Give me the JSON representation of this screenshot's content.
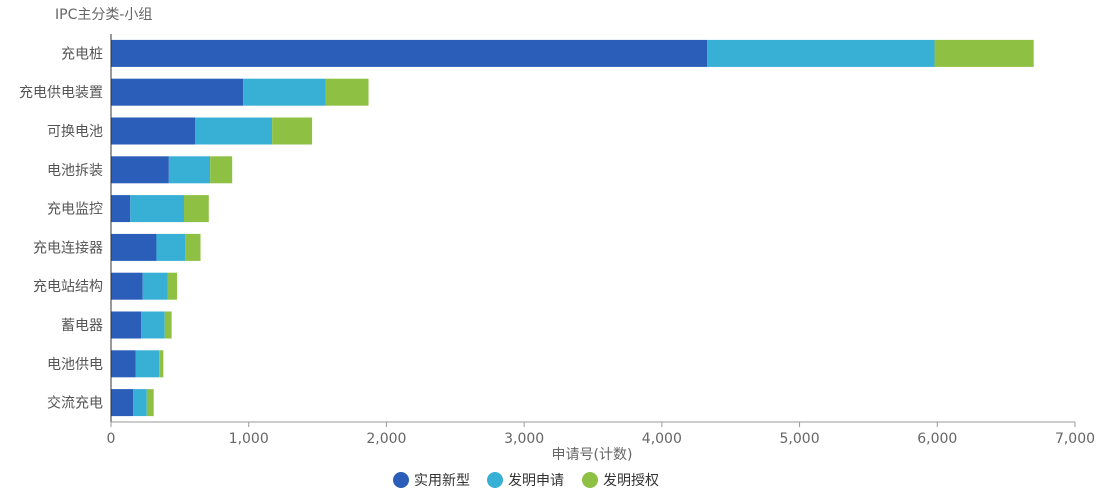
{
  "chart_data": {
    "type": "bar",
    "orientation": "horizontal",
    "stacked": true,
    "ylabel": "IPC主分类-小组",
    "xlabel": "申请号(计数)",
    "xlim": [
      0,
      7000
    ],
    "xticks": [
      "0",
      "1,000",
      "2,000",
      "3,000",
      "4,000",
      "5,000",
      "6,000",
      "7,000"
    ],
    "categories": [
      "充电桩",
      "充电供电装置",
      "可换电池",
      "电池拆装",
      "充电监控",
      "充电连接器",
      "充电站结构",
      "蓄电器",
      "电池供电",
      "交流充电"
    ],
    "series": [
      {
        "name": "实用新型",
        "color": "#2a5eb8",
        "values": [
          4330,
          960,
          610,
          420,
          140,
          330,
          230,
          220,
          180,
          160
        ]
      },
      {
        "name": "发明申请",
        "color": "#38afd4",
        "values": [
          1650,
          600,
          560,
          300,
          390,
          210,
          180,
          170,
          170,
          100
        ]
      },
      {
        "name": "发明授权",
        "color": "#8ec043",
        "values": [
          720,
          310,
          290,
          160,
          180,
          110,
          70,
          50,
          30,
          50
        ]
      }
    ],
    "grid": false,
    "legend": "bottom-center"
  }
}
